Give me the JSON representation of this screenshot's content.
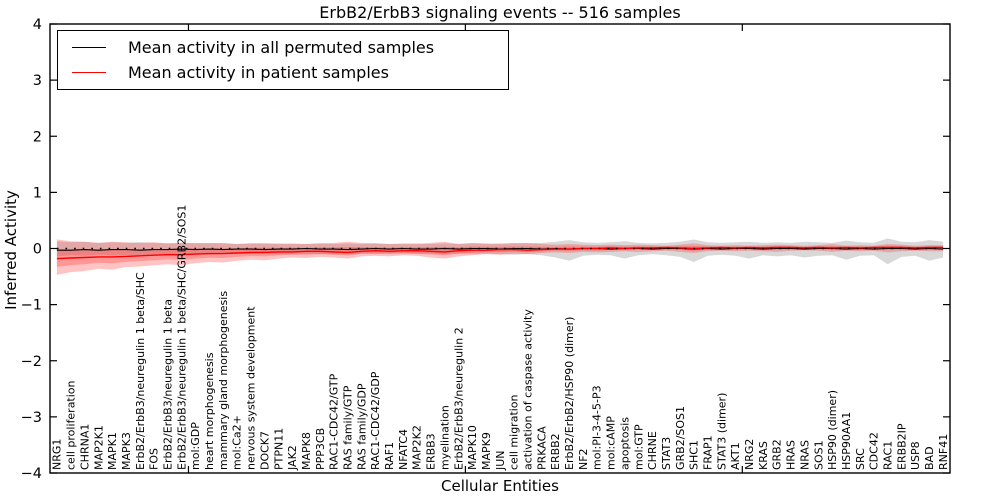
{
  "chart_data": {
    "type": "line",
    "title": "ErbB2/ErbB3 signaling events -- 516 samples",
    "xlabel": "Cellular Entities",
    "ylabel": "Inferred Activity",
    "ylim": [
      -4,
      4
    ],
    "grid": false,
    "legend_position": "upper left",
    "yticks": {
      "values": [
        4,
        3,
        2,
        1,
        0,
        -1,
        -2,
        -3,
        -4
      ],
      "labels": [
        "4",
        "3",
        "2",
        "1",
        "0",
        "−1",
        "−2",
        "−3",
        "−4"
      ]
    },
    "xticks_at_category_index": [
      10,
      30,
      50
    ],
    "zero_line": {
      "style": "dotted",
      "color": "#000000",
      "y": 0
    },
    "legend": {
      "items": [
        {
          "label": "Mean activity in all permuted samples",
          "color": "#000000"
        },
        {
          "label": "Mean activity in patient samples",
          "color": "#ff0000"
        }
      ]
    },
    "categories": [
      "NRG1",
      "cell proliferation",
      "CHRNA1",
      "MAP2K1",
      "MAPK1",
      "MAPK3",
      "ErbB2/ErbB3/neuregulin 1 beta/SHC",
      "FOS",
      "ErbB2/ErbB3/neuregulin 1 beta",
      "ErbB2/ErbB3/neuregulin 1 beta/SHC/GRB2/SOS1",
      "mol:GDP",
      "heart morphogenesis",
      "mammary gland morphogenesis",
      "mol:Ca2+",
      "nervous system development",
      "DOCK7",
      "PTPN11",
      "JAK2",
      "MAPK8",
      "PPP3CB",
      "RAC1-CDC42/GTP",
      "RAS family/GTP",
      "RAS family/GDP",
      "RAC1-CDC42/GDP",
      "RAF1",
      "NFATC4",
      "MAP2K2",
      "ERBB3",
      "myelination",
      "ErbB2/ErbB3/neuregulin 2",
      "MAPK10",
      "MAPK9",
      "JUN",
      "cell migration",
      "activation of caspase activity",
      "PRKACA",
      "ERBB2",
      "ErbB2/ErbB2/HSP90 (dimer)",
      "NF2",
      "mol:PI-3-4-5-P3",
      "mol:cAMP",
      "apoptosis",
      "mol:GTP",
      "CHRNE",
      "STAT3",
      "GRB2/SOS1",
      "SHC1",
      "FRAP1",
      "STAT3 (dimer)",
      "AKT1",
      "NRG2",
      "KRAS",
      "GRB2",
      "HRAS",
      "NRAS",
      "SOS1",
      "HSP90 (dimer)",
      "HSP90AA1",
      "SRC",
      "CDC42",
      "RAC1",
      "ERBB2IP",
      "USP8",
      "BAD",
      "RNF41"
    ],
    "series": [
      {
        "name": "Mean activity in all permuted samples",
        "color": "#000000",
        "band_color": "rgba(125,125,125,0.30)",
        "values": [
          -0.03,
          -0.03,
          -0.02,
          -0.03,
          -0.02,
          -0.02,
          -0.03,
          -0.02,
          -0.02,
          -0.01,
          -0.02,
          -0.01,
          -0.02,
          -0.01,
          -0.01,
          -0.02,
          -0.01,
          -0.01,
          0.0,
          -0.01,
          -0.01,
          -0.02,
          -0.01,
          0.0,
          -0.01,
          0.0,
          -0.01,
          -0.01,
          0.0,
          -0.01,
          0.0,
          0.0,
          -0.01,
          0.0,
          0.0,
          -0.01,
          0.0,
          -0.01,
          0.0,
          0.0,
          -0.01,
          0.0,
          0.0,
          -0.01,
          0.0,
          0.0,
          -0.01,
          0.0,
          -0.01,
          0.0,
          0.0,
          -0.01,
          0.0,
          0.0,
          -0.01,
          0.0,
          0.0,
          -0.01,
          0.0,
          -0.01,
          0.0,
          0.0,
          -0.01,
          0.0,
          -0.01
        ],
        "band_upper": [
          0.13,
          0.11,
          0.12,
          0.1,
          0.11,
          0.1,
          0.11,
          0.1,
          0.09,
          0.1,
          0.09,
          0.1,
          0.09,
          0.08,
          0.09,
          0.08,
          0.09,
          0.08,
          0.08,
          0.09,
          0.08,
          0.09,
          0.08,
          0.09,
          0.08,
          0.08,
          0.09,
          0.08,
          0.09,
          0.08,
          0.09,
          0.08,
          0.09,
          0.1,
          0.09,
          0.1,
          0.12,
          0.15,
          0.11,
          0.1,
          0.11,
          0.13,
          0.1,
          0.09,
          0.1,
          0.12,
          0.16,
          0.11,
          0.1,
          0.11,
          0.12,
          0.1,
          0.11,
          0.1,
          0.12,
          0.11,
          0.1,
          0.14,
          0.11,
          0.1,
          0.18,
          0.12,
          0.11,
          0.15,
          0.12
        ],
        "band_lower": [
          -0.14,
          -0.12,
          -0.13,
          -0.11,
          -0.12,
          -0.11,
          -0.12,
          -0.11,
          -0.1,
          -0.11,
          -0.1,
          -0.11,
          -0.1,
          -0.09,
          -0.1,
          -0.09,
          -0.1,
          -0.09,
          -0.09,
          -0.1,
          -0.09,
          -0.1,
          -0.09,
          -0.1,
          -0.09,
          -0.09,
          -0.1,
          -0.09,
          -0.1,
          -0.09,
          -0.1,
          -0.09,
          -0.1,
          -0.11,
          -0.1,
          -0.12,
          -0.16,
          -0.22,
          -0.13,
          -0.11,
          -0.12,
          -0.18,
          -0.12,
          -0.1,
          -0.12,
          -0.15,
          -0.24,
          -0.13,
          -0.11,
          -0.13,
          -0.18,
          -0.12,
          -0.14,
          -0.12,
          -0.16,
          -0.13,
          -0.12,
          -0.2,
          -0.13,
          -0.12,
          -0.28,
          -0.15,
          -0.13,
          -0.22,
          -0.16
        ]
      },
      {
        "name": "Mean activity in patient samples",
        "color": "#ff0000",
        "band_color": "rgba(255,40,40,0.28)",
        "values": [
          -0.18,
          -0.17,
          -0.16,
          -0.15,
          -0.15,
          -0.14,
          -0.13,
          -0.12,
          -0.11,
          -0.11,
          -0.1,
          -0.09,
          -0.09,
          -0.08,
          -0.07,
          -0.07,
          -0.06,
          -0.06,
          -0.05,
          -0.05,
          -0.06,
          -0.07,
          -0.05,
          -0.04,
          -0.05,
          -0.04,
          -0.04,
          -0.05,
          -0.06,
          -0.04,
          -0.03,
          -0.03,
          -0.02,
          -0.02,
          -0.03,
          -0.02,
          -0.01,
          -0.01,
          0.0,
          0.0,
          0.01,
          0.0,
          0.01,
          0.01,
          0.02,
          0.01,
          0.0,
          0.01,
          0.02,
          0.01,
          0.02,
          0.01,
          0.02,
          0.02,
          0.01,
          0.02,
          0.01,
          0.02,
          0.01,
          0.02,
          0.02,
          0.02,
          0.01,
          0.02,
          0.02
        ],
        "band_upper": [
          0.16,
          0.13,
          0.12,
          0.1,
          0.12,
          0.11,
          0.1,
          0.11,
          0.09,
          0.1,
          0.1,
          0.09,
          0.1,
          0.08,
          0.09,
          0.1,
          0.08,
          0.09,
          0.08,
          0.09,
          0.1,
          0.12,
          0.1,
          0.09,
          0.08,
          0.09,
          0.08,
          0.1,
          0.12,
          0.08,
          0.1,
          0.09,
          0.08,
          0.09,
          0.1,
          0.08,
          0.07,
          0.08,
          0.07,
          0.06,
          0.07,
          0.06,
          0.07,
          0.06,
          0.05,
          0.07,
          0.09,
          0.06,
          0.05,
          0.06,
          0.05,
          0.06,
          0.07,
          0.06,
          0.05,
          0.06,
          0.08,
          0.05,
          0.06,
          0.05,
          0.08,
          0.07,
          0.05,
          0.06,
          0.06
        ],
        "band_lower": [
          -0.47,
          -0.42,
          -0.4,
          -0.36,
          -0.38,
          -0.33,
          -0.32,
          -0.3,
          -0.28,
          -0.3,
          -0.26,
          -0.24,
          -0.25,
          -0.22,
          -0.2,
          -0.21,
          -0.18,
          -0.16,
          -0.17,
          -0.15,
          -0.16,
          -0.18,
          -0.14,
          -0.13,
          -0.14,
          -0.12,
          -0.13,
          -0.16,
          -0.18,
          -0.14,
          -0.12,
          -0.1,
          -0.11,
          -0.09,
          -0.1,
          -0.08,
          -0.07,
          -0.08,
          -0.06,
          -0.07,
          -0.06,
          -0.05,
          -0.06,
          -0.05,
          -0.04,
          -0.06,
          -0.08,
          -0.05,
          -0.04,
          -0.05,
          -0.04,
          -0.05,
          -0.06,
          -0.04,
          -0.03,
          -0.04,
          -0.06,
          -0.04,
          -0.05,
          -0.04,
          -0.07,
          -0.05,
          -0.04,
          -0.05,
          -0.05
        ]
      }
    ]
  }
}
